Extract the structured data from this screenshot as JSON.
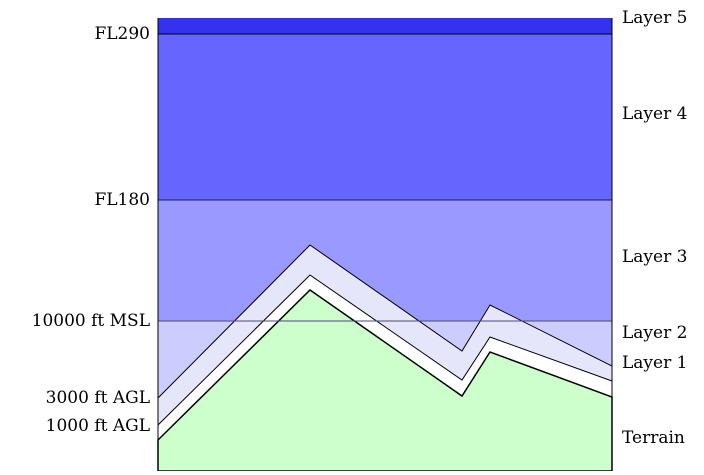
{
  "altitude_labels": {
    "fl290": "FL290",
    "fl180": "FL180",
    "msl_10000": "10000 ft MSL",
    "agl_3000": "3000 ft AGL",
    "agl_1000": "1000 ft AGL"
  },
  "layer_labels": {
    "layer5": "Layer 5",
    "layer4": "Layer 4",
    "layer3": "Layer 3",
    "layer2": "Layer 2",
    "layer1": "Layer 1",
    "terrain": "Terrain"
  },
  "colors": {
    "layer5": "#3333ee",
    "layer4": "#6666ff",
    "layer3": "#9999ff",
    "layer2": "#ccccff",
    "band_3000": "#e6e6fa",
    "band_1000": "#ffffff",
    "terrain": "#ccffcc",
    "outline": "#000000"
  }
}
